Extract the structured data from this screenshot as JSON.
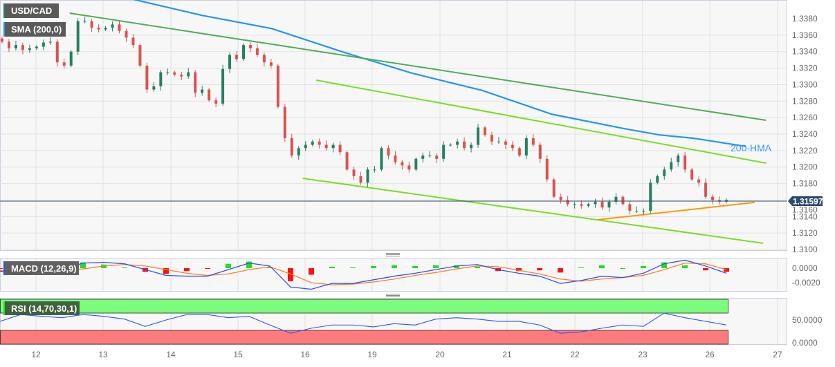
{
  "chart_data": {
    "type": "candlestick",
    "symbol": "USD/CAD",
    "indicator_label": "SMA (200,0)",
    "hma_label": "200-HMA",
    "last_price": "1.31597",
    "x_ticks": [
      "12",
      "13",
      "14",
      "15",
      "16",
      "19",
      "20",
      "21",
      "22",
      "23",
      "26",
      "27"
    ],
    "y_ticks": [
      "1.3380",
      "1.3360",
      "1.3340",
      "1.3320",
      "1.3300",
      "1.3280",
      "1.3260",
      "1.3240",
      "1.3220",
      "1.3200",
      "1.3180",
      "1.3160",
      "1.3140",
      "1.3120",
      "1.3100"
    ],
    "ylim": [
      1.31,
      1.34
    ],
    "grid": true,
    "closes": [
      1.3352,
      1.3344,
      1.3348,
      1.3342,
      1.3344,
      1.3346,
      1.3351,
      1.3352,
      1.3327,
      1.3323,
      1.334,
      1.3377,
      1.3377,
      1.3369,
      1.3367,
      1.3369,
      1.3373,
      1.3365,
      1.3357,
      1.3348,
      1.3323,
      1.3294,
      1.3298,
      1.3315,
      1.3315,
      1.3312,
      1.331,
      1.3315,
      1.329,
      1.3294,
      1.3281,
      1.3277,
      1.3319,
      1.3336,
      1.3331,
      1.3348,
      1.3344,
      1.3336,
      1.3327,
      1.3323,
      1.3273,
      1.3235,
      1.3214,
      1.3223,
      1.3227,
      1.3231,
      1.3227,
      1.3223,
      1.3227,
      1.3218,
      1.3197,
      1.3189,
      1.3181,
      1.3197,
      1.3197,
      1.3223,
      1.3214,
      1.3206,
      1.3202,
      1.3197,
      1.321,
      1.3214,
      1.3214,
      1.321,
      1.3227,
      1.3227,
      1.3231,
      1.3223,
      1.3227,
      1.3248,
      1.3239,
      1.3231,
      1.3231,
      1.3227,
      1.3223,
      1.3214,
      1.3235,
      1.3227,
      1.321,
      1.3185,
      1.3164,
      1.316,
      1.3155,
      1.3155,
      1.3153,
      1.3155,
      1.3158,
      1.3151,
      1.3158,
      1.3164,
      1.3155,
      1.3147,
      1.3147,
      1.3147,
      1.3181,
      1.3189,
      1.3197,
      1.3206,
      1.3214,
      1.3197,
      1.3185,
      1.3181,
      1.3164,
      1.316,
      1.3158,
      1.316
    ],
    "hma_200": [
      {
        "t": "13 10:00",
        "v": 1.3404
      },
      {
        "t": "14 11:00",
        "v": 1.3384
      },
      {
        "t": "15 12:00",
        "v": 1.3368
      },
      {
        "t": "16 14:00",
        "v": 1.3339
      },
      {
        "t": "19 14:00",
        "v": 1.3314
      },
      {
        "t": "20 15:00",
        "v": 1.3293
      },
      {
        "t": "21 16:00",
        "v": 1.3264
      },
      {
        "t": "22 17:00",
        "v": 1.3247
      },
      {
        "t": "23 06:00",
        "v": 1.3239
      },
      {
        "t": "23 18:00",
        "v": 1.3235
      },
      {
        "t": "26 13:00",
        "v": 1.3225
      }
    ],
    "trendlines": [
      {
        "name": "upper-resistance",
        "color": "#4caf50",
        "from": {
          "t": "12 12:00",
          "v": 1.33867
        },
        "to": {
          "t": "26 20:00",
          "v": 1.32568
        }
      },
      {
        "name": "channel-top",
        "color": "#76e020",
        "from": {
          "t": "16 04:00",
          "v": 1.33054
        },
        "to": {
          "t": "26 20:00",
          "v": 1.32048
        }
      },
      {
        "name": "channel-bottom",
        "color": "#76e020",
        "from": {
          "t": "15 23:00",
          "v": 1.31864
        },
        "to": {
          "t": "26 19:00",
          "v": 1.31076
        }
      },
      {
        "name": "support",
        "color": "#ff9800",
        "from": {
          "t": "22 08:00",
          "v": 1.31361
        },
        "to": {
          "t": "26 16:00",
          "v": 1.31571
        }
      }
    ],
    "macd": {
      "label": "MACD (12,26,9)",
      "y_ticks": [
        "0.0000",
        "-0.0020"
      ],
      "macd": [
        -0.0004,
        -0.0009,
        -0.0004,
        -0.0002,
        0.0007,
        0.0008,
        0.0006,
        -0.0002,
        -0.001,
        -0.0011,
        -0.0011,
        -0.0002,
        0.0007,
        0.0003,
        -0.0026,
        -0.0029,
        -0.0021,
        -0.0021,
        -0.0016,
        -0.0011,
        -0.0007,
        -0.0002,
        0.0003,
        0.0005,
        -0.0002,
        -0.0007,
        -0.0011,
        -0.0021,
        -0.0017,
        -0.0011,
        -0.0013,
        -0.0007,
        0.0006,
        0.0011,
        0.0003,
        -0.0007
      ],
      "signal": [
        -0.0003,
        -0.0005,
        -0.0005,
        -0.0004,
        -0.0001,
        0.0003,
        0.0005,
        0.0003,
        -0.0002,
        -0.0007,
        -0.001,
        -0.0008,
        -0.0002,
        0.0002,
        -0.0008,
        -0.002,
        -0.0023,
        -0.0022,
        -0.0019,
        -0.0015,
        -0.001,
        -0.0006,
        -0.0001,
        0.0003,
        0.0002,
        -0.0003,
        -0.0008,
        -0.0015,
        -0.0018,
        -0.0015,
        -0.0013,
        -0.001,
        -0.0002,
        0.0007,
        0.0006,
        -0.0002
      ]
    },
    "rsi": {
      "label": "RSI (14,70,30,1)",
      "y_ticks": [
        "50.0000",
        "0.0000"
      ],
      "values": [
        47,
        62,
        58,
        55,
        62,
        58,
        52,
        36,
        50,
        62,
        62,
        55,
        58,
        39,
        21,
        32,
        39,
        39,
        35,
        42,
        39,
        52,
        55,
        52,
        47,
        47,
        39,
        21,
        24,
        32,
        39,
        36,
        65,
        55,
        47,
        39
      ]
    },
    "colors": {
      "up": "#26805f",
      "down": "#d9534f",
      "hma": "#2196f3",
      "macd": "#3050ff",
      "signal": "#ff8020",
      "hist_up": "#22dd22",
      "hist_down": "#ff1010",
      "rsi": "#3050ff",
      "overbought": "#7cfc7c",
      "oversold": "#ff7b7b",
      "price_tag": "#2c4a6e"
    }
  }
}
